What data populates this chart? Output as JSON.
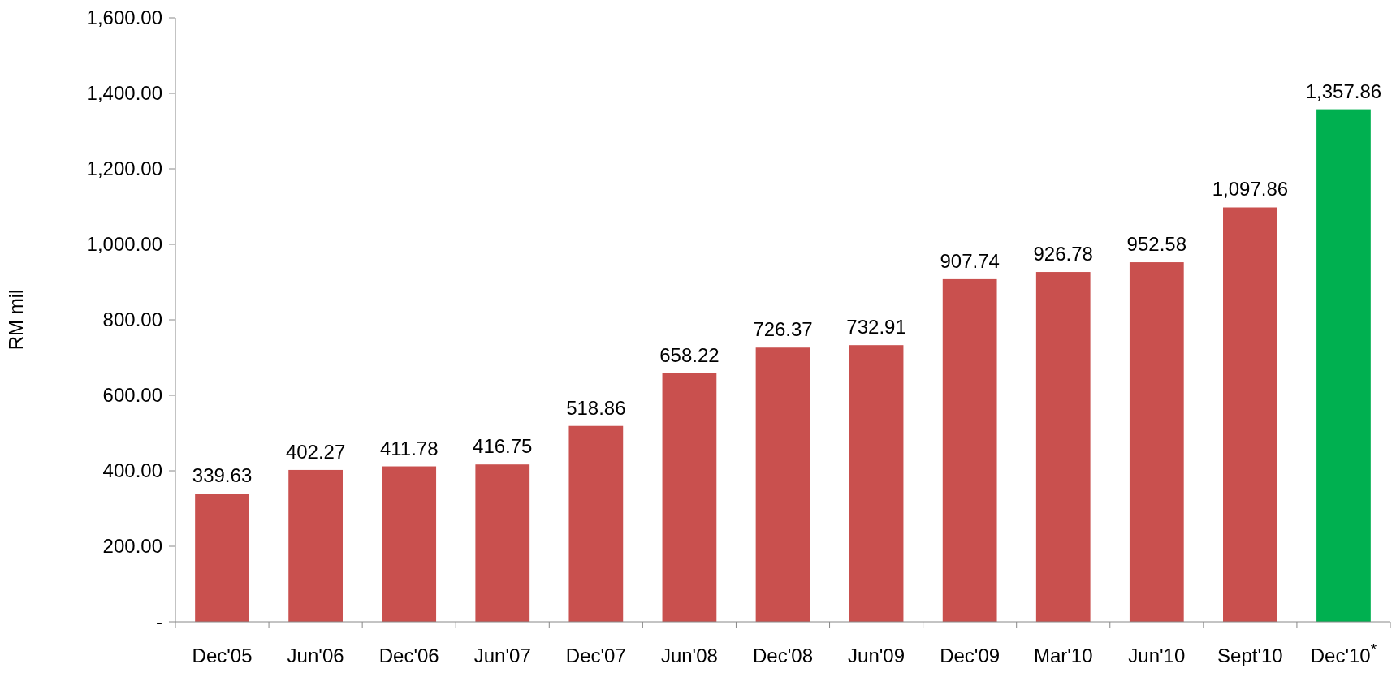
{
  "chart_data": {
    "type": "bar",
    "ylabel": "RM mil",
    "categories": [
      "Dec'05",
      "Jun'06",
      "Dec'06",
      "Jun'07",
      "Dec'07",
      "Jun'08",
      "Dec'08",
      "Jun'09",
      "Dec'09",
      "Mar'10",
      "Jun'10",
      "Sept'10",
      "Dec'10$^{*}$"
    ],
    "values": [
      339.63,
      402.27,
      411.78,
      416.75,
      518.86,
      658.22,
      726.37,
      732.91,
      907.74,
      926.78,
      952.58,
      1097.86,
      1357.86
    ],
    "colors": [
      "#c9504e",
      "#c9504e",
      "#c9504e",
      "#c9504e",
      "#c9504e",
      "#c9504e",
      "#c9504e",
      "#c9504e",
      "#c9504e",
      "#c9504e",
      "#c9504e",
      "#c9504e",
      "#00b050"
    ],
    "value_labels": [
      "339.63",
      "402.27",
      "411.78",
      "416.75",
      "518.86",
      "658.22",
      "726.37",
      "732.91",
      "907.74",
      "926.78",
      "952.58",
      "1,097.86",
      "1,357.86"
    ],
    "ylim": [
      0,
      1600
    ],
    "yticks": [
      {
        "value": 0,
        "label": "-"
      },
      {
        "value": 200,
        "label": "200.00"
      },
      {
        "value": 400,
        "label": "400.00"
      },
      {
        "value": 600,
        "label": "600.00"
      },
      {
        "value": 800,
        "label": "800.00"
      },
      {
        "value": 1000,
        "label": "1,000.00"
      },
      {
        "value": 1200,
        "label": "1,200.00"
      },
      {
        "value": 1400,
        "label": "1,400.00"
      },
      {
        "value": 1600,
        "label": "1,600.00"
      }
    ],
    "grid": false
  }
}
